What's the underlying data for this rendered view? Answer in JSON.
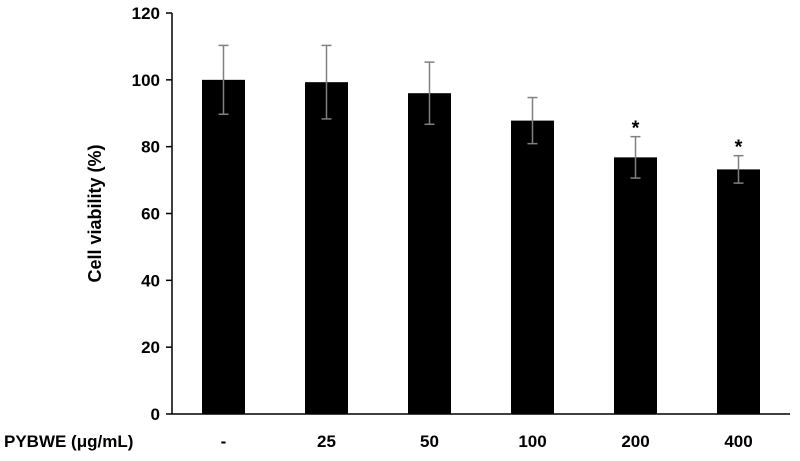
{
  "chart_data": {
    "type": "bar",
    "xlabel": "PYBWE (μg/mL)",
    "ylabel": "Cell viability (%)",
    "categories": [
      "-",
      "25",
      "50",
      "100",
      "200",
      "400"
    ],
    "values": [
      100,
      99.3,
      96,
      87.8,
      76.8,
      73.2
    ],
    "errors": [
      10.3,
      11,
      9.3,
      6.9,
      6.2,
      4.1
    ],
    "annotations": [
      "",
      "",
      "",
      "",
      "*",
      "*"
    ],
    "ylim": [
      0,
      120
    ],
    "yticks": [
      0,
      20,
      40,
      60,
      80,
      100,
      120
    ],
    "grid": false,
    "bar_color": "#000000",
    "errorbar_color": "#808080"
  }
}
